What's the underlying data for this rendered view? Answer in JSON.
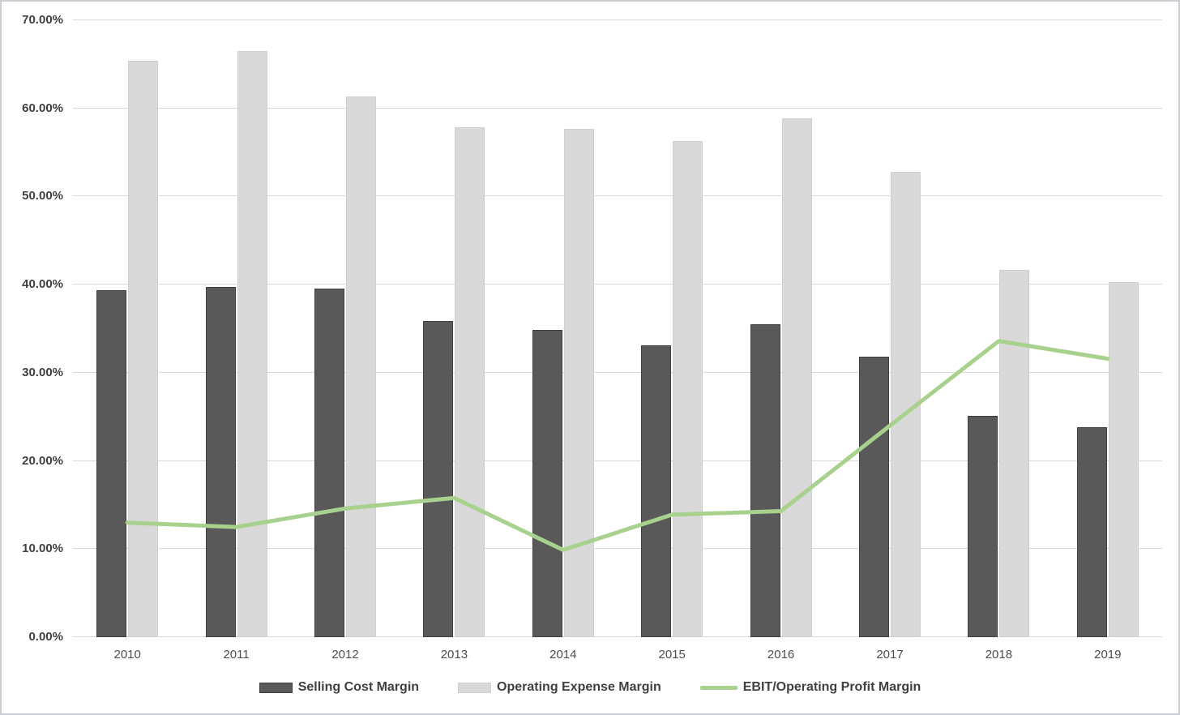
{
  "frame": {
    "background_color": "#ffffff",
    "border_color": "#caced3",
    "gridline_color": "#d9d9d9"
  },
  "chart_data": {
    "type": "combo-bar-line",
    "title": "",
    "categories": [
      "2010",
      "2011",
      "2012",
      "2013",
      "2014",
      "2015",
      "2016",
      "2017",
      "2018",
      "2019"
    ],
    "series": [
      {
        "name": "Selling Cost Margin",
        "type": "bar",
        "color": "#595959",
        "border": "#3f3f3f",
        "values": [
          39.4,
          39.7,
          39.6,
          35.9,
          34.9,
          33.1,
          35.5,
          31.8,
          25.1,
          23.8
        ]
      },
      {
        "name": "Operating Expense Margin",
        "type": "bar",
        "color": "#d9d9d9",
        "border": "#d0d0d0",
        "values": [
          65.4,
          66.5,
          61.4,
          57.9,
          57.7,
          56.3,
          58.9,
          52.8,
          41.7,
          40.3
        ]
      },
      {
        "name": "EBIT/Operating Profit Margin",
        "type": "line",
        "color": "#a9d18e",
        "values": [
          13.0,
          12.5,
          14.6,
          15.8,
          9.9,
          13.9,
          14.3,
          24.0,
          33.6,
          31.6
        ]
      }
    ],
    "y_axis": {
      "min": 0,
      "max": 70,
      "step": 10,
      "tick_labels": [
        "0.00%",
        "10.00%",
        "20.00%",
        "30.00%",
        "40.00%",
        "50.00%",
        "60.00%",
        "70.00%"
      ]
    },
    "x_axis_label": "",
    "y_axis_label": "",
    "grid": true,
    "legend_position": "bottom"
  }
}
